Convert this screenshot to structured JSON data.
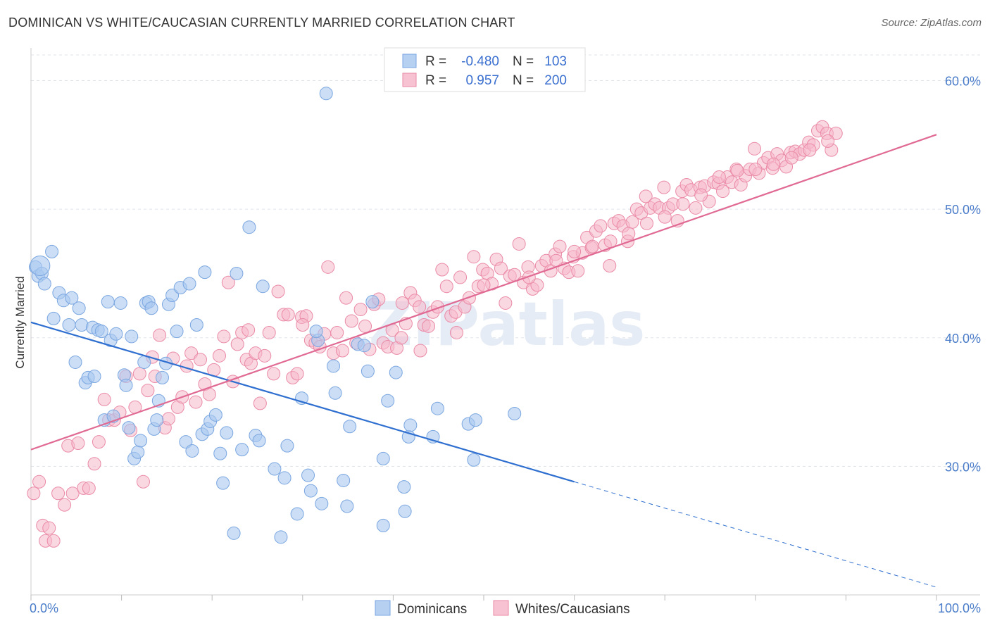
{
  "title": "DOMINICAN VS WHITE/CAUCASIAN CURRENTLY MARRIED CORRELATION CHART",
  "source": "Source: ZipAtlas.com",
  "watermark": "ZIPatlas",
  "chart_data": {
    "type": "scatter",
    "ylabel": "Currently Married",
    "xlabel": "",
    "xlim": [
      0,
      100
    ],
    "ylim": [
      20,
      62
    ],
    "x_tick_labels": [
      {
        "value": 0,
        "label": "0.0%"
      },
      {
        "value": 100,
        "label": "100.0%"
      }
    ],
    "y_tick_labels": [
      {
        "value": 30,
        "label": "30.0%"
      },
      {
        "value": 40,
        "label": "40.0%"
      },
      {
        "value": 50,
        "label": "50.0%"
      },
      {
        "value": 60,
        "label": "60.0%"
      }
    ],
    "grid": "horizontal dashed",
    "legend_top": [
      {
        "r_label": "R =",
        "r_value": "-0.480",
        "n_label": "N =",
        "n_value": "103",
        "color": "#a9c8f0"
      },
      {
        "r_label": "R =",
        "r_value": "0.957",
        "n_label": "N =",
        "n_value": "200",
        "color": "#f6b8ca"
      }
    ],
    "series": [
      {
        "name": "Dominicans",
        "color": "#a9c8f0",
        "stroke": "#7aa6e0",
        "trend": {
          "x0": 0,
          "y0": 41.2,
          "x1": 60,
          "y1": 28.8,
          "dash_to_x": 100,
          "dash_to_y": 20.6,
          "color": "#2f6fd0"
        },
        "points": [
          [
            0.5,
            45.5
          ],
          [
            0.8,
            44.8
          ],
          [
            1.2,
            45.0
          ],
          [
            1.5,
            44.2
          ],
          [
            2.3,
            46.7
          ],
          [
            2.5,
            41.5
          ],
          [
            3.1,
            43.5
          ],
          [
            3.6,
            42.9
          ],
          [
            4.2,
            41.0
          ],
          [
            4.5,
            43.1
          ],
          [
            4.9,
            38.1
          ],
          [
            5.3,
            42.3
          ],
          [
            5.6,
            41.0
          ],
          [
            6.0,
            36.5
          ],
          [
            6.3,
            36.9
          ],
          [
            6.8,
            40.8
          ],
          [
            7.0,
            37.0
          ],
          [
            7.4,
            40.6
          ],
          [
            7.8,
            40.5
          ],
          [
            8.1,
            33.6
          ],
          [
            8.5,
            42.8
          ],
          [
            8.8,
            39.8
          ],
          [
            9.1,
            33.9
          ],
          [
            9.4,
            40.3
          ],
          [
            9.9,
            42.7
          ],
          [
            10.3,
            37.1
          ],
          [
            10.5,
            36.3
          ],
          [
            10.8,
            33.0
          ],
          [
            11.1,
            40.1
          ],
          [
            11.4,
            30.6
          ],
          [
            11.8,
            31.1
          ],
          [
            12.1,
            32.0
          ],
          [
            12.5,
            38.1
          ],
          [
            12.7,
            42.7
          ],
          [
            13.0,
            42.8
          ],
          [
            13.3,
            42.3
          ],
          [
            13.6,
            32.9
          ],
          [
            13.9,
            33.6
          ],
          [
            14.1,
            35.1
          ],
          [
            14.5,
            36.9
          ],
          [
            14.9,
            38.0
          ],
          [
            15.2,
            42.6
          ],
          [
            15.6,
            43.3
          ],
          [
            16.1,
            40.5
          ],
          [
            16.5,
            43.9
          ],
          [
            17.1,
            31.9
          ],
          [
            17.5,
            44.2
          ],
          [
            17.8,
            31.2
          ],
          [
            18.3,
            41.0
          ],
          [
            18.9,
            32.5
          ],
          [
            19.2,
            45.1
          ],
          [
            19.5,
            32.9
          ],
          [
            19.8,
            33.5
          ],
          [
            20.4,
            34.0
          ],
          [
            20.9,
            31.0
          ],
          [
            21.2,
            28.7
          ],
          [
            21.6,
            32.6
          ],
          [
            22.4,
            24.8
          ],
          [
            22.7,
            45.0
          ],
          [
            23.3,
            31.3
          ],
          [
            24.1,
            48.6
          ],
          [
            24.8,
            32.4
          ],
          [
            25.2,
            32.0
          ],
          [
            25.6,
            44.0
          ],
          [
            26.9,
            29.8
          ],
          [
            27.6,
            24.5
          ],
          [
            28.0,
            29.1
          ],
          [
            28.3,
            31.6
          ],
          [
            29.4,
            26.3
          ],
          [
            29.9,
            35.3
          ],
          [
            30.6,
            29.3
          ],
          [
            30.9,
            28.1
          ],
          [
            31.7,
            39.8
          ],
          [
            31.5,
            40.5
          ],
          [
            32.1,
            27.1
          ],
          [
            32.6,
            59.0
          ],
          [
            33.4,
            37.8
          ],
          [
            33.6,
            35.7
          ],
          [
            34.5,
            28.9
          ],
          [
            34.9,
            26.9
          ],
          [
            35.2,
            33.1
          ],
          [
            36.1,
            39.5
          ],
          [
            36.8,
            39.4
          ],
          [
            37.2,
            37.4
          ],
          [
            37.7,
            42.8
          ],
          [
            38.9,
            30.6
          ],
          [
            38.9,
            25.4
          ],
          [
            39.4,
            35.1
          ],
          [
            40.3,
            37.3
          ],
          [
            41.2,
            28.4
          ],
          [
            41.3,
            26.5
          ],
          [
            41.7,
            32.3
          ],
          [
            41.9,
            33.2
          ],
          [
            44.4,
            32.3
          ],
          [
            44.9,
            34.5
          ],
          [
            48.3,
            33.3
          ],
          [
            48.9,
            30.5
          ],
          [
            49.1,
            33.6
          ],
          [
            53.4,
            34.1
          ],
          [
            1.0,
            45.6
          ]
        ]
      },
      {
        "name": "Whites/Caucasians",
        "color": "#f6b8ca",
        "stroke": "#ea8aa6",
        "trend": {
          "x0": 0,
          "y0": 31.3,
          "x1": 100,
          "y1": 55.8,
          "color": "#e06a93"
        },
        "points": [
          [
            0.3,
            27.9
          ],
          [
            0.9,
            28.8
          ],
          [
            1.3,
            25.4
          ],
          [
            1.6,
            24.2
          ],
          [
            2.0,
            25.2
          ],
          [
            2.5,
            24.2
          ],
          [
            3.0,
            27.9
          ],
          [
            3.7,
            27.0
          ],
          [
            4.1,
            31.6
          ],
          [
            4.6,
            27.9
          ],
          [
            5.2,
            31.8
          ],
          [
            5.8,
            28.3
          ],
          [
            6.4,
            28.3
          ],
          [
            7.0,
            30.2
          ],
          [
            7.5,
            31.9
          ],
          [
            8.1,
            35.2
          ],
          [
            8.6,
            33.6
          ],
          [
            9.2,
            33.6
          ],
          [
            9.8,
            34.2
          ],
          [
            10.5,
            37.0
          ],
          [
            11.0,
            32.8
          ],
          [
            11.5,
            34.6
          ],
          [
            12.0,
            37.2
          ],
          [
            12.4,
            28.8
          ],
          [
            12.9,
            35.9
          ],
          [
            13.4,
            38.5
          ],
          [
            13.7,
            37.0
          ],
          [
            14.2,
            40.2
          ],
          [
            14.8,
            33.0
          ],
          [
            15.2,
            33.7
          ],
          [
            15.7,
            38.4
          ],
          [
            16.2,
            34.6
          ],
          [
            16.7,
            35.4
          ],
          [
            17.2,
            37.8
          ],
          [
            17.7,
            38.8
          ],
          [
            18.2,
            35.0
          ],
          [
            18.7,
            38.3
          ],
          [
            19.2,
            36.4
          ],
          [
            19.7,
            35.6
          ],
          [
            20.2,
            37.5
          ],
          [
            20.8,
            38.6
          ],
          [
            21.3,
            40.1
          ],
          [
            21.8,
            44.3
          ],
          [
            22.3,
            36.6
          ],
          [
            22.8,
            39.5
          ],
          [
            23.3,
            40.4
          ],
          [
            23.8,
            38.3
          ],
          [
            24.3,
            38.0
          ],
          [
            24.8,
            38.8
          ],
          [
            25.3,
            34.9
          ],
          [
            25.8,
            38.6
          ],
          [
            26.3,
            40.4
          ],
          [
            26.8,
            37.2
          ],
          [
            27.3,
            43.6
          ],
          [
            27.9,
            41.8
          ],
          [
            28.4,
            41.8
          ],
          [
            28.9,
            36.9
          ],
          [
            29.4,
            37.2
          ],
          [
            29.9,
            41.6
          ],
          [
            30.4,
            41.7
          ],
          [
            30.9,
            39.8
          ],
          [
            31.4,
            39.6
          ],
          [
            31.9,
            39.3
          ],
          [
            32.4,
            40.3
          ],
          [
            32.8,
            45.5
          ],
          [
            33.4,
            38.8
          ],
          [
            33.8,
            40.4
          ],
          [
            34.4,
            39.0
          ],
          [
            34.8,
            43.1
          ],
          [
            35.4,
            41.3
          ],
          [
            35.9,
            39.6
          ],
          [
            36.4,
            42.2
          ],
          [
            36.9,
            40.9
          ],
          [
            37.4,
            39.1
          ],
          [
            37.9,
            42.6
          ],
          [
            38.4,
            43.0
          ],
          [
            38.9,
            39.6
          ],
          [
            39.4,
            39.3
          ],
          [
            39.9,
            40.6
          ],
          [
            40.4,
            39.2
          ],
          [
            40.9,
            40.0
          ],
          [
            41.4,
            41.1
          ],
          [
            41.9,
            43.5
          ],
          [
            42.4,
            42.9
          ],
          [
            42.9,
            42.4
          ],
          [
            43.4,
            41.0
          ],
          [
            43.9,
            40.9
          ],
          [
            44.4,
            42.0
          ],
          [
            44.9,
            42.4
          ],
          [
            45.4,
            45.3
          ],
          [
            45.9,
            44.0
          ],
          [
            46.4,
            41.7
          ],
          [
            46.9,
            42.0
          ],
          [
            47.4,
            44.7
          ],
          [
            47.9,
            42.4
          ],
          [
            48.4,
            43.1
          ],
          [
            48.9,
            46.3
          ],
          [
            49.4,
            44.0
          ],
          [
            49.9,
            45.3
          ],
          [
            50.4,
            45.0
          ],
          [
            50.9,
            44.2
          ],
          [
            51.4,
            46.1
          ],
          [
            51.9,
            45.4
          ],
          [
            52.4,
            42.7
          ],
          [
            52.9,
            44.8
          ],
          [
            53.4,
            44.9
          ],
          [
            53.9,
            47.3
          ],
          [
            54.4,
            44.3
          ],
          [
            54.9,
            45.5
          ],
          [
            55.4,
            43.8
          ],
          [
            55.9,
            44.1
          ],
          [
            56.4,
            45.6
          ],
          [
            56.9,
            46.0
          ],
          [
            57.4,
            45.2
          ],
          [
            57.9,
            46.5
          ],
          [
            58.4,
            47.1
          ],
          [
            58.9,
            45.4
          ],
          [
            59.4,
            45.1
          ],
          [
            59.9,
            46.3
          ],
          [
            60.4,
            45.2
          ],
          [
            60.9,
            46.6
          ],
          [
            61.4,
            47.8
          ],
          [
            61.9,
            47.0
          ],
          [
            62.4,
            48.3
          ],
          [
            62.9,
            48.7
          ],
          [
            63.4,
            47.2
          ],
          [
            63.9,
            45.6
          ],
          [
            64.4,
            48.9
          ],
          [
            64.9,
            49.1
          ],
          [
            65.4,
            48.7
          ],
          [
            65.9,
            47.5
          ],
          [
            66.4,
            49.0
          ],
          [
            66.9,
            50.0
          ],
          [
            67.4,
            49.7
          ],
          [
            67.9,
            51.0
          ],
          [
            68.4,
            50.1
          ],
          [
            68.9,
            50.4
          ],
          [
            69.4,
            50.1
          ],
          [
            69.9,
            51.7
          ],
          [
            70.4,
            50.1
          ],
          [
            70.9,
            50.4
          ],
          [
            71.4,
            49.1
          ],
          [
            71.9,
            51.4
          ],
          [
            72.4,
            51.9
          ],
          [
            72.9,
            51.5
          ],
          [
            73.4,
            50.1
          ],
          [
            73.9,
            51.7
          ],
          [
            74.4,
            51.8
          ],
          [
            74.9,
            50.6
          ],
          [
            75.4,
            52.1
          ],
          [
            75.9,
            52.0
          ],
          [
            76.4,
            51.4
          ],
          [
            76.9,
            52.5
          ],
          [
            77.4,
            52.1
          ],
          [
            77.9,
            53.1
          ],
          [
            78.4,
            51.9
          ],
          [
            78.9,
            52.6
          ],
          [
            79.4,
            53.1
          ],
          [
            79.9,
            54.7
          ],
          [
            80.4,
            52.8
          ],
          [
            80.9,
            53.6
          ],
          [
            81.4,
            54.0
          ],
          [
            81.9,
            53.2
          ],
          [
            82.4,
            54.3
          ],
          [
            82.9,
            53.8
          ],
          [
            83.4,
            53.3
          ],
          [
            83.9,
            54.4
          ],
          [
            84.4,
            54.5
          ],
          [
            84.9,
            54.3
          ],
          [
            85.4,
            54.6
          ],
          [
            85.9,
            55.2
          ],
          [
            86.4,
            55.0
          ],
          [
            86.9,
            56.1
          ],
          [
            87.4,
            56.4
          ],
          [
            87.9,
            55.9
          ],
          [
            88.4,
            54.6
          ],
          [
            88.9,
            55.9
          ],
          [
            41.0,
            42.7
          ],
          [
            43.0,
            39.0
          ],
          [
            47.0,
            40.4
          ],
          [
            50.0,
            44.1
          ],
          [
            55.0,
            44.7
          ],
          [
            58.0,
            46.0
          ],
          [
            60.0,
            46.7
          ],
          [
            62.0,
            47.1
          ],
          [
            64.0,
            47.5
          ],
          [
            66.0,
            48.1
          ],
          [
            68.0,
            48.9
          ],
          [
            70.0,
            49.4
          ],
          [
            72.0,
            50.4
          ],
          [
            74.0,
            51.1
          ],
          [
            76.0,
            52.5
          ],
          [
            78.0,
            53.0
          ],
          [
            80.0,
            53.1
          ],
          [
            82.0,
            53.5
          ],
          [
            84.0,
            54.0
          ],
          [
            86.0,
            54.6
          ],
          [
            88.0,
            55.3
          ],
          [
            24.0,
            40.6
          ],
          [
            30.0,
            41.0
          ]
        ]
      }
    ]
  },
  "bottom_legend": [
    {
      "label": "Dominicans",
      "color": "#a9c8f0"
    },
    {
      "label": "Whites/Caucasians",
      "color": "#f6b8ca"
    }
  ]
}
